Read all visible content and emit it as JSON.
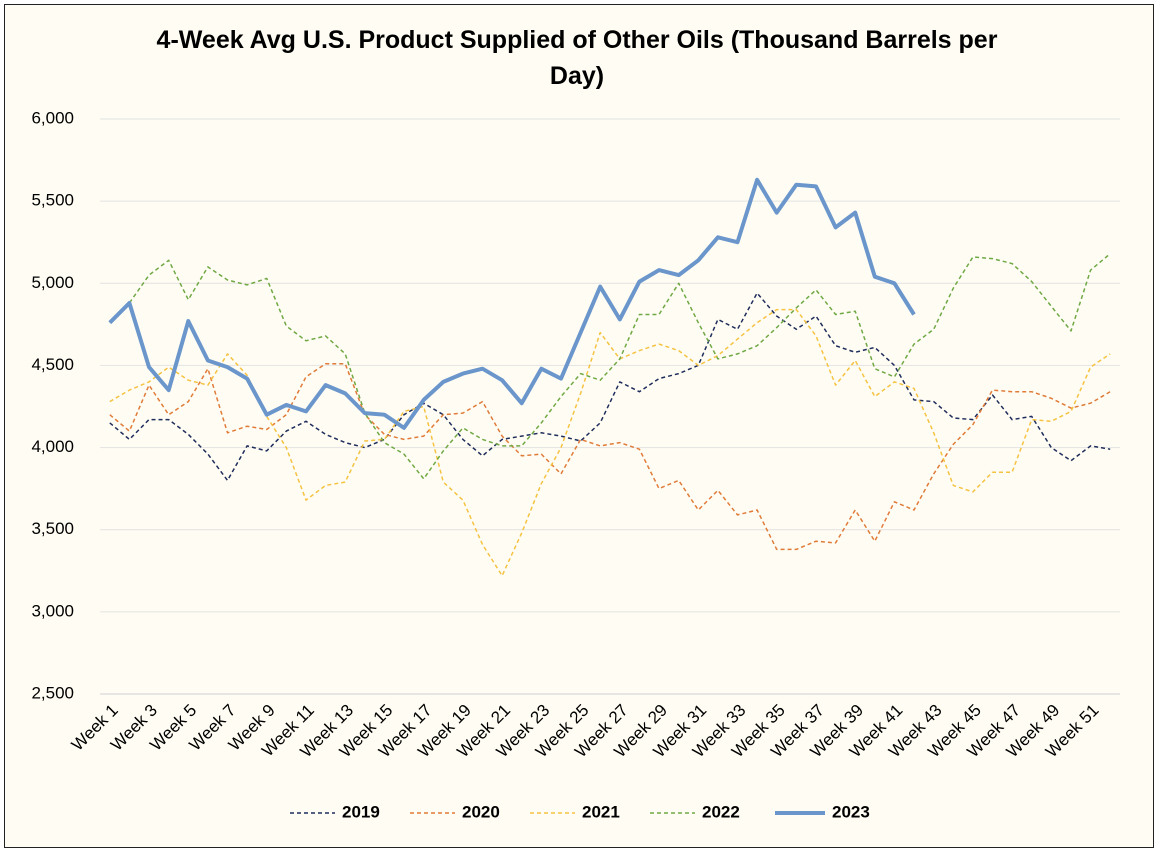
{
  "chart_data": {
    "type": "line",
    "title": "4-Week Avg U.S. Product Supplied of Other Oils  (Thousand Barrels per Day)",
    "categories": [
      "Week 1",
      null,
      "Week 3",
      null,
      "Week 5",
      null,
      "Week 7",
      null,
      "Week 9",
      null,
      "Week 11",
      null,
      "Week 13",
      null,
      "Week 15",
      null,
      "Week 17",
      null,
      "Week 19",
      null,
      "Week 21",
      null,
      "Week 23",
      null,
      "Week 25",
      null,
      "Week 27",
      null,
      "Week 29",
      null,
      "Week 31",
      null,
      "Week 33",
      null,
      "Week 35",
      null,
      "Week 37",
      null,
      "Week 39",
      null,
      "Week 41",
      null,
      "Week 43",
      null,
      "Week 45",
      null,
      "Week 47",
      null,
      "Week 49",
      null,
      "Week 51",
      null
    ],
    "ylim": [
      2500,
      6000
    ],
    "yticks": [
      {
        "value": 2500,
        "label": "2,500"
      },
      {
        "value": 3000,
        "label": "3,000"
      },
      {
        "value": 3500,
        "label": "3,500"
      },
      {
        "value": 4000,
        "label": "4,000"
      },
      {
        "value": 4500,
        "label": "4,500"
      },
      {
        "value": 5000,
        "label": "5,000"
      },
      {
        "value": 5500,
        "label": "5,500"
      },
      {
        "value": 6000,
        "label": "6,000"
      }
    ],
    "grid": true,
    "legend": "bottom",
    "series": [
      {
        "name": "2019",
        "color": "#1f2d5c",
        "dashed": true,
        "width": 1.5,
        "values": [
          4150,
          4050,
          4170,
          4170,
          4080,
          3960,
          3800,
          4010,
          3980,
          4100,
          4160,
          4080,
          4030,
          4000,
          4050,
          4200,
          4270,
          4200,
          4050,
          3950,
          4050,
          4070,
          4090,
          4070,
          4040,
          4150,
          4400,
          4340,
          4420,
          4450,
          4500,
          4780,
          4720,
          4940,
          4800,
          4720,
          4800,
          4620,
          4580,
          4610,
          4500,
          4290,
          4280,
          4180,
          4170,
          4320,
          4170,
          4190,
          4000,
          3920,
          4010,
          3990
        ]
      },
      {
        "name": "2020",
        "color": "#e07b39",
        "dashed": true,
        "width": 1.5,
        "values": [
          4200,
          4100,
          4380,
          4200,
          4280,
          4480,
          4090,
          4130,
          4110,
          4200,
          4430,
          4510,
          4510,
          4200,
          4080,
          4050,
          4070,
          4200,
          4210,
          4280,
          4070,
          3950,
          3960,
          3840,
          4050,
          4010,
          4030,
          3990,
          3750,
          3800,
          3620,
          3740,
          3590,
          3620,
          3380,
          3380,
          3430,
          3420,
          3620,
          3430,
          3670,
          3620,
          3840,
          4020,
          4140,
          4350,
          4340,
          4340,
          4300,
          4240,
          4270,
          4340
        ]
      },
      {
        "name": "2021",
        "color": "#f5c242",
        "dashed": true,
        "width": 1.5,
        "values": [
          4280,
          4350,
          4400,
          4490,
          4410,
          4380,
          4570,
          4440,
          4190,
          4000,
          3680,
          3770,
          3790,
          4040,
          4050,
          4220,
          4250,
          3790,
          3680,
          3410,
          3220,
          3480,
          3780,
          4000,
          4330,
          4700,
          4540,
          4590,
          4630,
          4590,
          4500,
          4560,
          4660,
          4760,
          4840,
          4840,
          4680,
          4380,
          4530,
          4310,
          4400,
          4360,
          4090,
          3770,
          3730,
          3850,
          3850,
          4170,
          4160,
          4220,
          4490,
          4570
        ]
      },
      {
        "name": "2022",
        "color": "#70a845",
        "dashed": true,
        "width": 1.5,
        "values": [
          4760,
          4880,
          5050,
          5140,
          4900,
          5100,
          5020,
          4990,
          5030,
          4740,
          4650,
          4680,
          4570,
          4210,
          4030,
          3960,
          3810,
          3980,
          4120,
          4050,
          4010,
          4010,
          4150,
          4310,
          4450,
          4410,
          4540,
          4810,
          4810,
          5000,
          4760,
          4540,
          4570,
          4620,
          4730,
          4850,
          4960,
          4810,
          4830,
          4480,
          4430,
          4630,
          4720,
          4970,
          5160,
          5150,
          5120,
          5010,
          4860,
          4710,
          5080,
          5180
        ]
      },
      {
        "name": "2023",
        "color": "#6b96cc",
        "dashed": false,
        "width": 4,
        "values": [
          4760,
          4880,
          4490,
          4350,
          4770,
          4530,
          4490,
          4420,
          4200,
          4260,
          4220,
          4380,
          4330,
          4210,
          4200,
          4120,
          4290,
          4400,
          4450,
          4480,
          4410,
          4270,
          4480,
          4420,
          4700,
          4980,
          4780,
          5010,
          5080,
          5050,
          5140,
          5280,
          5250,
          5630,
          5430,
          5600,
          5590,
          5340,
          5430,
          5040,
          5000,
          4810,
          null,
          null,
          null,
          null,
          null,
          null,
          null,
          null,
          null,
          null
        ]
      }
    ]
  }
}
